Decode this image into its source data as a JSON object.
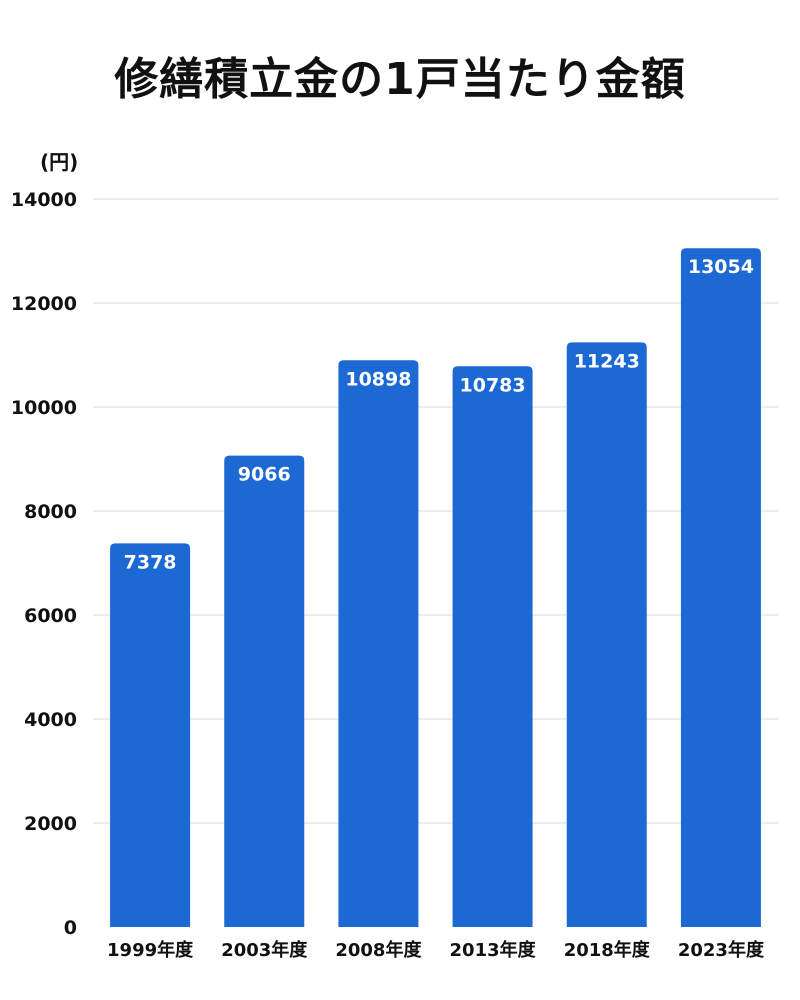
{
  "chart_data": {
    "type": "bar",
    "title": "修繕積立金の1戸当たり金額",
    "unit_label": "(円)",
    "categories": [
      "1999年度",
      "2003年度",
      "2008年度",
      "2013年度",
      "2018年度",
      "2023年度"
    ],
    "values": [
      7378,
      9066,
      10898,
      10783,
      11243,
      13054
    ],
    "ylim": [
      0,
      14000
    ],
    "yticks": [
      0,
      2000,
      4000,
      6000,
      8000,
      10000,
      12000,
      14000
    ],
    "grid": true,
    "legend": "none",
    "bar_color": "#1c69d4",
    "data_labels_inside_top": true
  }
}
